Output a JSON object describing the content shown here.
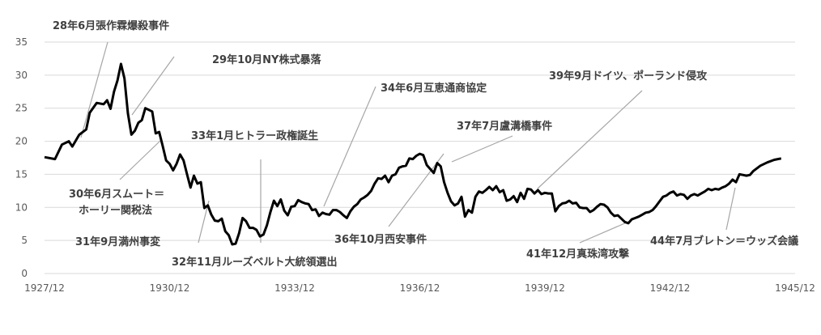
{
  "chart_data": {
    "type": "line",
    "x_axis": {
      "tick_labels": [
        "1927/12",
        "1930/12",
        "1933/12",
        "1936/12",
        "1939/12",
        "1942/12",
        "1945/12"
      ],
      "range": [
        "1927/12",
        "1945/12"
      ]
    },
    "y_axis": {
      "ticks": [
        0,
        5,
        10,
        15,
        20,
        25,
        30,
        35
      ],
      "range": [
        0,
        35
      ]
    },
    "grid": "horizontal",
    "series": [
      {
        "color": "#000000",
        "points": [
          [
            "1927/12",
            17.6
          ],
          [
            "1928/03",
            17.3
          ],
          [
            "1928/05",
            19.5
          ],
          [
            "1928/07",
            20.0
          ],
          [
            "1928/08",
            19.2
          ],
          [
            "1928/10",
            21.0
          ],
          [
            "1928/12",
            21.8
          ],
          [
            "1929/01",
            24.3
          ],
          [
            "1929/03",
            25.8
          ],
          [
            "1929/05",
            25.6
          ],
          [
            "1929/06",
            26.2
          ],
          [
            "1929/07",
            24.9
          ],
          [
            "1929/08",
            27.5
          ],
          [
            "1929/09",
            29.2
          ],
          [
            "1929/10",
            31.7
          ],
          [
            "1929/11",
            29.5
          ],
          [
            "1929/12",
            24.2
          ],
          [
            "1930/01",
            21.0
          ],
          [
            "1930/02",
            21.6
          ],
          [
            "1930/03",
            22.8
          ],
          [
            "1930/04",
            23.2
          ],
          [
            "1930/05",
            25.0
          ],
          [
            "1930/07",
            24.5
          ],
          [
            "1930/08",
            21.2
          ],
          [
            "1930/09",
            21.4
          ],
          [
            "1930/10",
            19.3
          ],
          [
            "1930/11",
            17.1
          ],
          [
            "1930/12",
            16.6
          ],
          [
            "1931/01",
            15.6
          ],
          [
            "1931/02",
            16.6
          ],
          [
            "1931/03",
            18.0
          ],
          [
            "1931/04",
            17.1
          ],
          [
            "1931/05",
            15.0
          ],
          [
            "1931/06",
            13.0
          ],
          [
            "1931/07",
            14.8
          ],
          [
            "1931/08",
            13.6
          ],
          [
            "1931/09",
            13.8
          ],
          [
            "1931/10",
            9.9
          ],
          [
            "1931/11",
            10.3
          ],
          [
            "1931/12",
            8.9
          ],
          [
            "1932/01",
            8.0
          ],
          [
            "1932/02",
            7.9
          ],
          [
            "1932/03",
            8.3
          ],
          [
            "1932/04",
            6.4
          ],
          [
            "1932/05",
            5.8
          ],
          [
            "1932/06",
            4.4
          ],
          [
            "1932/07",
            4.5
          ],
          [
            "1932/08",
            6.1
          ],
          [
            "1932/09",
            8.4
          ],
          [
            "1932/10",
            7.9
          ],
          [
            "1932/11",
            6.9
          ],
          [
            "1932/12",
            6.9
          ],
          [
            "1933/01",
            6.6
          ],
          [
            "1933/02",
            5.6
          ],
          [
            "1933/03",
            5.9
          ],
          [
            "1933/04",
            7.3
          ],
          [
            "1933/05",
            9.3
          ],
          [
            "1933/06",
            11.0
          ],
          [
            "1933/07",
            10.2
          ],
          [
            "1933/08",
            11.2
          ],
          [
            "1933/09",
            9.5
          ],
          [
            "1933/10",
            8.8
          ],
          [
            "1933/11",
            10.1
          ],
          [
            "1933/12",
            10.2
          ],
          [
            "1934/01",
            11.1
          ],
          [
            "1934/02",
            10.8
          ],
          [
            "1934/03",
            10.6
          ],
          [
            "1934/04",
            10.5
          ],
          [
            "1934/05",
            9.6
          ],
          [
            "1934/06",
            9.7
          ],
          [
            "1934/07",
            8.7
          ],
          [
            "1934/08",
            9.2
          ],
          [
            "1934/09",
            9.0
          ],
          [
            "1934/10",
            8.9
          ],
          [
            "1934/11",
            9.6
          ],
          [
            "1934/12",
            9.6
          ],
          [
            "1935/01",
            9.3
          ],
          [
            "1935/02",
            8.8
          ],
          [
            "1935/03",
            8.4
          ],
          [
            "1935/04",
            9.4
          ],
          [
            "1935/05",
            10.1
          ],
          [
            "1935/06",
            10.5
          ],
          [
            "1935/07",
            11.2
          ],
          [
            "1935/08",
            11.5
          ],
          [
            "1935/09",
            11.9
          ],
          [
            "1935/10",
            12.5
          ],
          [
            "1935/11",
            13.6
          ],
          [
            "1935/12",
            14.4
          ],
          [
            "1936/01",
            14.3
          ],
          [
            "1936/02",
            14.8
          ],
          [
            "1936/03",
            13.8
          ],
          [
            "1936/04",
            14.8
          ],
          [
            "1936/05",
            15.0
          ],
          [
            "1936/06",
            16.0
          ],
          [
            "1936/07",
            16.2
          ],
          [
            "1936/08",
            16.3
          ],
          [
            "1936/09",
            17.4
          ],
          [
            "1936/10",
            17.3
          ],
          [
            "1936/11",
            17.8
          ],
          [
            "1936/12",
            18.1
          ],
          [
            "1937/01",
            17.9
          ],
          [
            "1937/02",
            16.4
          ],
          [
            "1937/03",
            15.8
          ],
          [
            "1937/04",
            15.2
          ],
          [
            "1937/05",
            16.7
          ],
          [
            "1937/06",
            16.2
          ],
          [
            "1937/07",
            13.8
          ],
          [
            "1937/08",
            12.2
          ],
          [
            "1937/09",
            10.9
          ],
          [
            "1937/10",
            10.3
          ],
          [
            "1937/11",
            10.6
          ],
          [
            "1937/12",
            11.6
          ],
          [
            "1938/01",
            8.6
          ],
          [
            "1938/02",
            9.6
          ],
          [
            "1938/03",
            9.2
          ],
          [
            "1938/04",
            11.6
          ],
          [
            "1938/05",
            12.4
          ],
          [
            "1938/06",
            12.2
          ],
          [
            "1938/07",
            12.6
          ],
          [
            "1938/08",
            13.1
          ],
          [
            "1938/09",
            12.6
          ],
          [
            "1938/10",
            13.2
          ],
          [
            "1938/11",
            12.3
          ],
          [
            "1938/12",
            12.6
          ],
          [
            "1939/01",
            11.0
          ],
          [
            "1939/02",
            11.2
          ],
          [
            "1939/03",
            11.7
          ],
          [
            "1939/04",
            10.8
          ],
          [
            "1939/05",
            12.2
          ],
          [
            "1939/06",
            11.3
          ],
          [
            "1939/07",
            12.8
          ],
          [
            "1939/08",
            12.7
          ],
          [
            "1939/09",
            12.1
          ],
          [
            "1939/10",
            12.6
          ],
          [
            "1939/11",
            12.0
          ],
          [
            "1939/12",
            12.2
          ],
          [
            "1940/01",
            12.1
          ],
          [
            "1940/02",
            12.1
          ],
          [
            "1940/03",
            9.4
          ],
          [
            "1940/04",
            10.2
          ],
          [
            "1940/05",
            10.6
          ],
          [
            "1940/06",
            10.7
          ],
          [
            "1940/07",
            11.0
          ],
          [
            "1940/08",
            10.6
          ],
          [
            "1940/09",
            10.7
          ],
          [
            "1940/10",
            10.0
          ],
          [
            "1940/11",
            9.9
          ],
          [
            "1940/12",
            9.9
          ],
          [
            "1941/01",
            9.3
          ],
          [
            "1941/02",
            9.6
          ],
          [
            "1941/03",
            10.1
          ],
          [
            "1941/04",
            10.5
          ],
          [
            "1941/05",
            10.4
          ],
          [
            "1941/06",
            10.0
          ],
          [
            "1941/07",
            9.2
          ],
          [
            "1941/08",
            8.7
          ],
          [
            "1941/09",
            8.8
          ],
          [
            "1941/10",
            8.3
          ],
          [
            "1941/11",
            7.8
          ],
          [
            "1941/12",
            7.6
          ],
          [
            "1942/01",
            8.2
          ],
          [
            "1942/02",
            8.4
          ],
          [
            "1942/03",
            8.6
          ],
          [
            "1942/04",
            8.9
          ],
          [
            "1942/05",
            9.2
          ],
          [
            "1942/06",
            9.3
          ],
          [
            "1942/07",
            9.6
          ],
          [
            "1942/08",
            10.2
          ],
          [
            "1942/09",
            10.9
          ],
          [
            "1942/10",
            11.6
          ],
          [
            "1942/11",
            11.8
          ],
          [
            "1942/12",
            12.2
          ],
          [
            "1943/01",
            12.4
          ],
          [
            "1943/02",
            11.8
          ],
          [
            "1943/03",
            12.0
          ],
          [
            "1943/04",
            11.9
          ],
          [
            "1943/05",
            11.3
          ],
          [
            "1943/06",
            11.8
          ],
          [
            "1943/07",
            12.0
          ],
          [
            "1943/08",
            11.8
          ],
          [
            "1943/09",
            12.1
          ],
          [
            "1943/10",
            12.4
          ],
          [
            "1943/11",
            12.8
          ],
          [
            "1943/12",
            12.6
          ],
          [
            "1944/01",
            12.8
          ],
          [
            "1944/02",
            12.7
          ],
          [
            "1944/03",
            13.0
          ],
          [
            "1944/04",
            13.2
          ],
          [
            "1944/05",
            13.6
          ],
          [
            "1944/06",
            14.2
          ],
          [
            "1944/07",
            13.8
          ],
          [
            "1944/08",
            15.0
          ],
          [
            "1944/09",
            14.9
          ],
          [
            "1944/10",
            14.8
          ],
          [
            "1944/11",
            14.9
          ],
          [
            "1944/12",
            15.5
          ],
          [
            "1945/02",
            16.3
          ],
          [
            "1945/04",
            16.8
          ],
          [
            "1945/06",
            17.2
          ],
          [
            "1945/08",
            17.4
          ]
        ]
      }
    ],
    "annotations": [
      {
        "text": "28年6月張作霖爆殺事件",
        "date": "1928/06",
        "label_pos": "top-left"
      },
      {
        "text": "29年10月NY株式暴落",
        "date": "1929/10",
        "label_pos": "top"
      },
      {
        "text": "30年6月スムート＝",
        "text2": "ホーリー関税法",
        "date": "1930/06",
        "label_pos": "below-left"
      },
      {
        "text": "31年9月満州事変",
        "date": "1931/09",
        "label_pos": "bottom-left"
      },
      {
        "text": "32年11月ルーズベルト大統領選出",
        "date": "1932/11",
        "label_pos": "bottom"
      },
      {
        "text": "33年1月ヒトラー政権誕生",
        "date": "1933/01",
        "label_pos": "middle"
      },
      {
        "text": "34年6月互恵通商協定",
        "date": "1934/06",
        "label_pos": "top"
      },
      {
        "text": "36年10月西安事件",
        "date": "1936/10",
        "label_pos": "bottom"
      },
      {
        "text": "37年7月盧溝橋事件",
        "date": "1937/07",
        "label_pos": "upper-right"
      },
      {
        "text": "39年9月ドイツ、ポーランド侵攻",
        "date": "1939/09",
        "label_pos": "top-right"
      },
      {
        "text": "41年12月真珠湾攻撃",
        "date": "1941/12",
        "label_pos": "bottom"
      },
      {
        "text": "44年7月ブレトン＝ウッズ会議",
        "date": "1944/07",
        "label_pos": "bottom-right"
      }
    ]
  }
}
